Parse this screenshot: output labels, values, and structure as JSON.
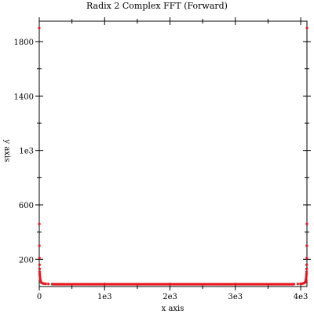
{
  "chart_data": {
    "type": "scatter",
    "title": "Radix 2 Complex FFT (Forward)",
    "xlabel": "x axis",
    "ylabel": "y axis",
    "xlim": [
      0,
      4095
    ],
    "ylim": [
      0,
      1950
    ],
    "x_ticks": [
      {
        "value": 0,
        "label": "0"
      },
      {
        "value": 1000,
        "label": "1e3"
      },
      {
        "value": 2000,
        "label": "2e3"
      },
      {
        "value": 3000,
        "label": "3e3"
      },
      {
        "value": 4000,
        "label": "4e3"
      }
    ],
    "y_ticks": [
      {
        "value": 200,
        "label": "200"
      },
      {
        "value": 600,
        "label": "600"
      },
      {
        "value": 1000,
        "label": "1e3"
      },
      {
        "value": 1400,
        "label": "1400"
      },
      {
        "value": 1800,
        "label": "1800"
      }
    ],
    "grid": false,
    "series": [
      {
        "color": "#e8141c",
        "points": [
          [
            0,
            1900
          ],
          [
            4095,
            1900
          ],
          [
            1,
            460
          ],
          [
            2,
            300
          ],
          [
            3,
            210
          ],
          [
            4,
            160
          ],
          [
            5,
            130
          ],
          [
            6,
            110
          ],
          [
            7,
            95
          ],
          [
            8,
            85
          ],
          [
            10,
            72
          ],
          [
            12,
            62
          ],
          [
            14,
            54
          ],
          [
            16,
            48
          ],
          [
            20,
            40
          ],
          [
            25,
            34
          ],
          [
            30,
            30
          ],
          [
            40,
            26
          ],
          [
            55,
            23
          ],
          [
            75,
            21
          ],
          [
            100,
            20
          ],
          [
            140,
            19
          ],
          [
            200,
            18
          ],
          [
            4094,
            460
          ],
          [
            4093,
            300
          ],
          [
            4092,
            210
          ],
          [
            4091,
            160
          ],
          [
            4090,
            130
          ],
          [
            4089,
            110
          ],
          [
            4088,
            95
          ],
          [
            4087,
            85
          ],
          [
            4085,
            72
          ],
          [
            4083,
            62
          ],
          [
            4081,
            54
          ],
          [
            4079,
            48
          ],
          [
            4075,
            40
          ],
          [
            4070,
            34
          ],
          [
            4065,
            30
          ],
          [
            4055,
            26
          ],
          [
            4040,
            23
          ],
          [
            4020,
            21
          ],
          [
            3995,
            20
          ],
          [
            3955,
            19
          ],
          [
            3895,
            18
          ]
        ],
        "baseline": {
          "x_start": 200,
          "x_end": 3895,
          "step": 15,
          "y": 17
        }
      }
    ],
    "colors": {
      "axis": "#000000",
      "marker": "#e8141c"
    }
  }
}
